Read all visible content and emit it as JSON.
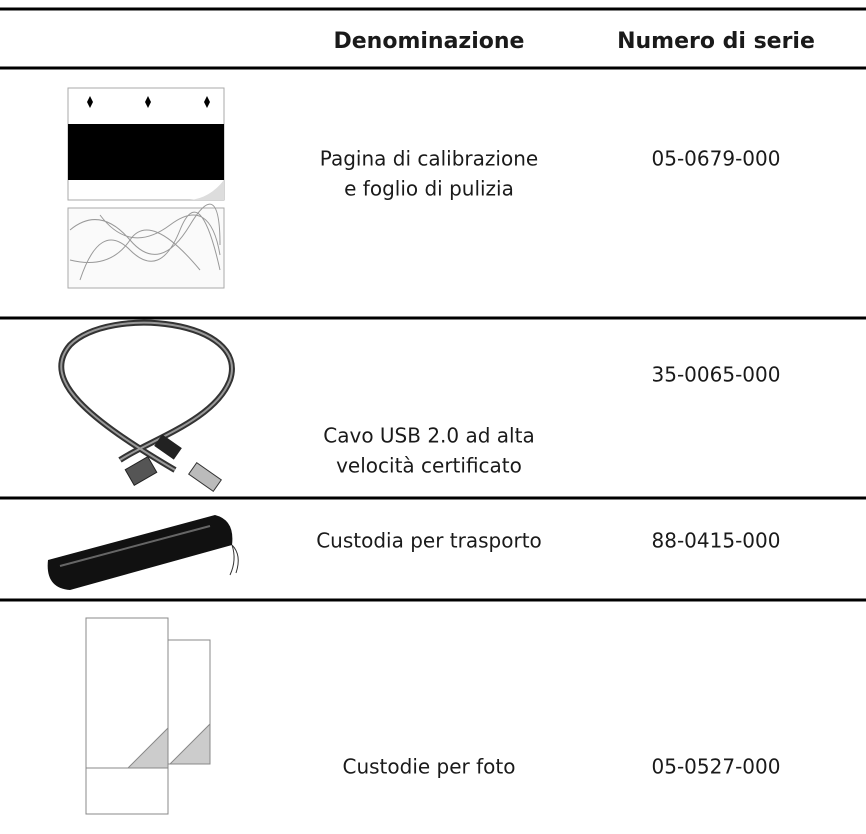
{
  "table": {
    "headers": [
      "Denominazione",
      "Numero di serie"
    ],
    "rows": [
      {
        "name": [
          "Pagina di calibrazione",
          "e foglio di pulizia"
        ],
        "serial": "05-0679-000"
      },
      {
        "name": [
          "Cavo USB 2.0 ad alta",
          "velocità certificato"
        ],
        "serial": "35-0065-000"
      },
      {
        "name": [
          "Custodia per trasporto"
        ],
        "serial": "88-0415-000"
      },
      {
        "name": [
          "Custodie per foto"
        ],
        "serial": "05-0527-000"
      }
    ]
  }
}
